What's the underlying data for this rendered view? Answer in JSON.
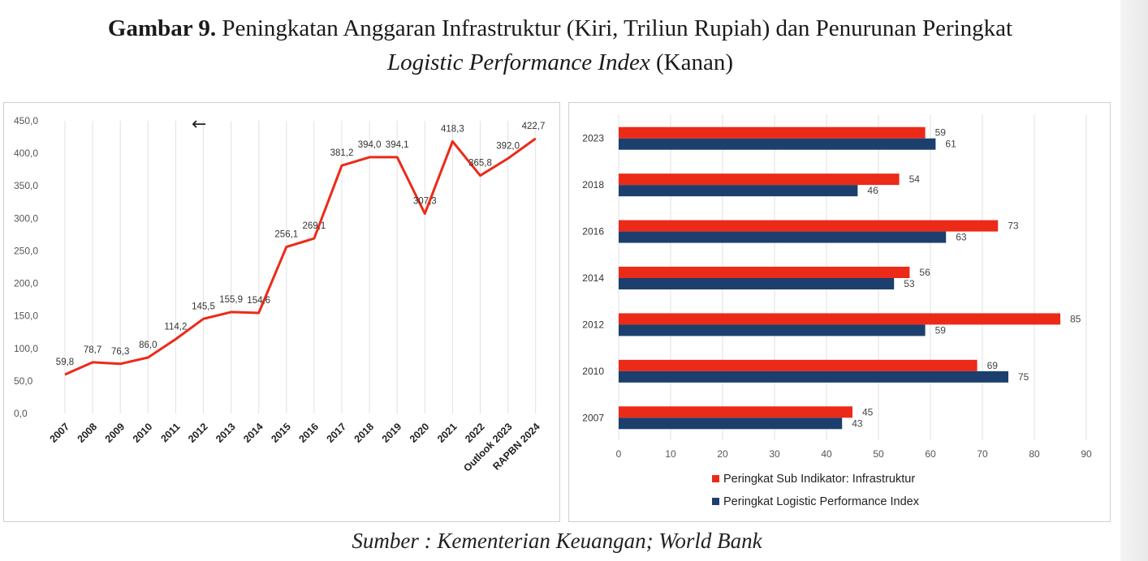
{
  "figure": {
    "title_label": "Gambar 9.",
    "title_main": " Peningkatan Anggaran Infrastruktur (Kiri, Triliun Rupiah) dan Penurunan Peringkat",
    "title_italic": "Logistic Performance Index",
    "title_tail": " (Kanan)",
    "source": "Sumber : Kementerian Keuangan; World Bank"
  },
  "icons": {
    "cursor": "arrow-left-icon"
  },
  "colors": {
    "red": "#ec2a18",
    "navy": "#1c3f6e",
    "grid": "#e2e2e2",
    "axis_text": "#555555"
  },
  "chart_data": [
    {
      "type": "line",
      "categories": [
        "2007",
        "2008",
        "2009",
        "2010",
        "2011",
        "2012",
        "2013",
        "2014",
        "2015",
        "2016",
        "2017",
        "2018",
        "2019",
        "2020",
        "2021",
        "2022",
        "Outlook 2023",
        "RAPBN 2024"
      ],
      "values": [
        59.8,
        78.7,
        76.3,
        86.0,
        114.2,
        145.5,
        155.9,
        154.6,
        256.1,
        269.1,
        381.2,
        394.0,
        394.1,
        307.3,
        418.3,
        365.8,
        392.0,
        422.7
      ],
      "value_labels": [
        "59,8",
        "78,7",
        "76,3",
        "86,0",
        "114,2",
        "145,5",
        "155,9",
        "154,6",
        "256,1",
        "269,1",
        "381,2",
        "394,0",
        "394,1",
        "307,3",
        "418,3",
        "365,8",
        "392,0",
        "422,7"
      ],
      "y_ticks": [
        "0,0",
        "50,0",
        "100,0",
        "150,0",
        "200,0",
        "250,0",
        "300,0",
        "350,0",
        "400,0",
        "450,0"
      ],
      "ylim": [
        0,
        450
      ],
      "grid": "vertical"
    },
    {
      "type": "bar",
      "orientation": "horizontal",
      "categories": [
        "2023",
        "2018",
        "2016",
        "2014",
        "2012",
        "2010",
        "2007"
      ],
      "series": [
        {
          "name": "Peringkat Sub Indikator: Infrastruktur",
          "values": [
            59,
            54,
            73,
            56,
            85,
            69,
            45
          ]
        },
        {
          "name": "Peringkat Logistic Performance Index",
          "values": [
            61,
            46,
            63,
            53,
            59,
            75,
            43
          ]
        }
      ],
      "x_ticks": [
        "0",
        "10",
        "20",
        "30",
        "40",
        "50",
        "60",
        "70",
        "80",
        "90"
      ],
      "xlim": [
        0,
        90
      ],
      "grid": "vertical",
      "legend_position": "bottom"
    }
  ]
}
